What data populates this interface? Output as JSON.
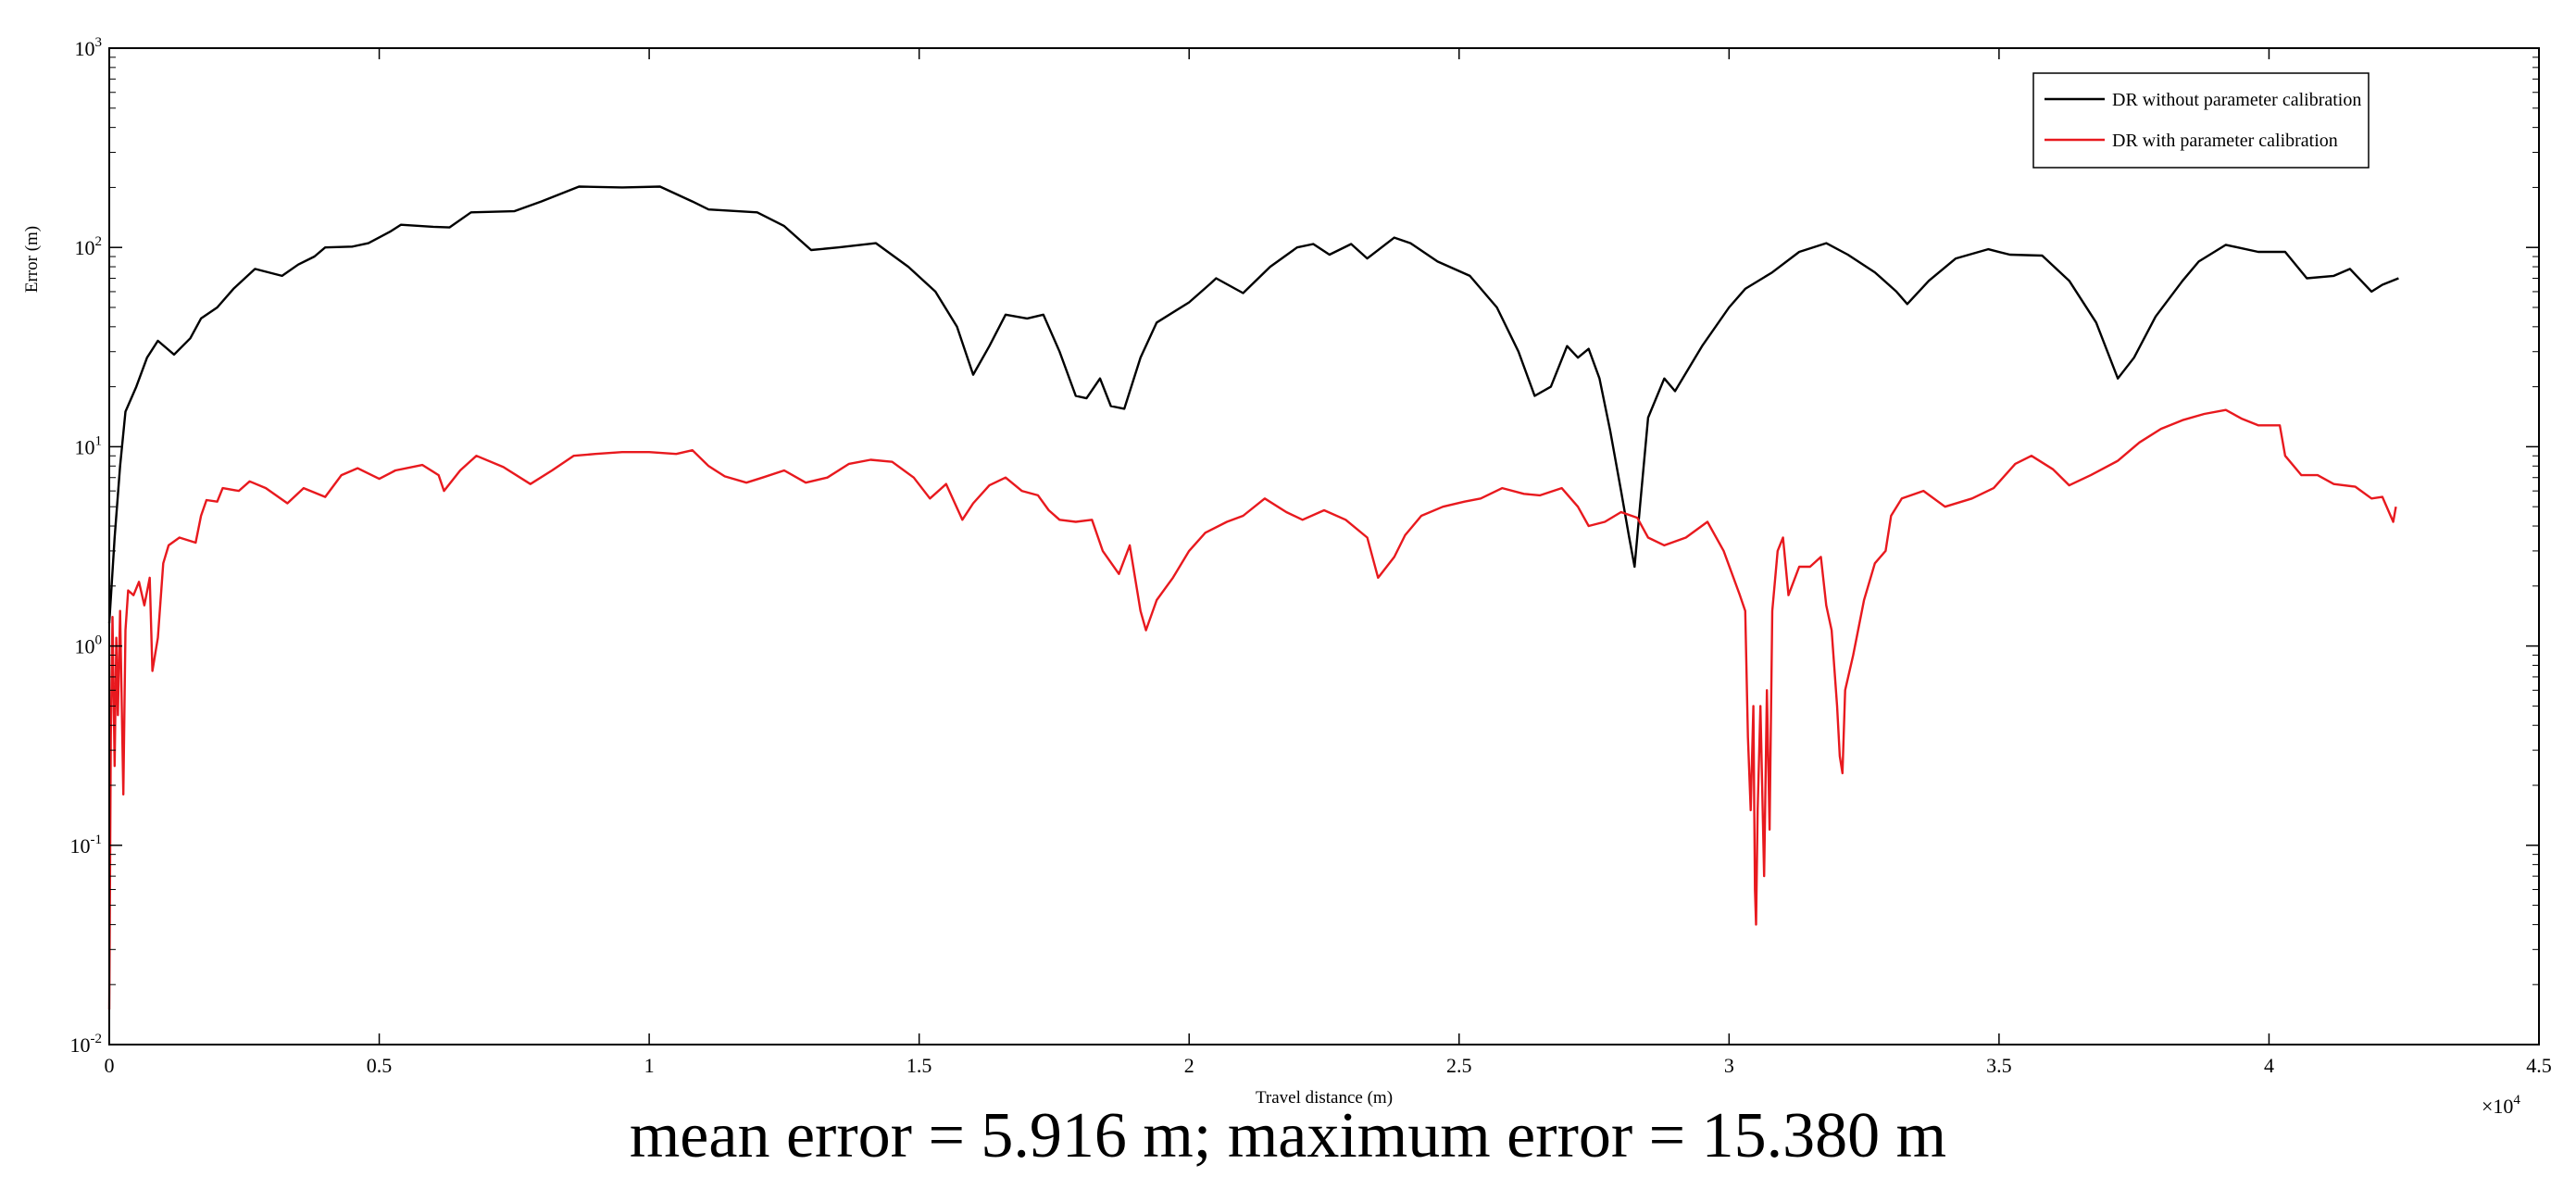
{
  "chart_data": {
    "type": "line",
    "xlabel": "Travel distance (m)",
    "ylabel": "Error (m)",
    "x_multiplier": "×10",
    "x_multiplier_exp": "4",
    "xlim": [
      0,
      45000
    ],
    "ylim": [
      0.01,
      1000
    ],
    "yscale": "log",
    "legend_position": "top-right",
    "x_ticks": [
      {
        "v": 0,
        "label": "0"
      },
      {
        "v": 5000,
        "label": "0.5"
      },
      {
        "v": 10000,
        "label": "1"
      },
      {
        "v": 15000,
        "label": "1.5"
      },
      {
        "v": 20000,
        "label": "2"
      },
      {
        "v": 25000,
        "label": "2.5"
      },
      {
        "v": 30000,
        "label": "3"
      },
      {
        "v": 35000,
        "label": "3.5"
      },
      {
        "v": 40000,
        "label": "4"
      },
      {
        "v": 45000,
        "label": "4.5"
      }
    ],
    "y_ticks": [
      {
        "v": 0.01,
        "exp": "-2"
      },
      {
        "v": 0.1,
        "exp": "-1"
      },
      {
        "v": 1,
        "exp": "0"
      },
      {
        "v": 10,
        "exp": "1"
      },
      {
        "v": 100,
        "exp": "2"
      },
      {
        "v": 1000,
        "exp": "3"
      }
    ],
    "series": [
      {
        "name": "DR without parameter calibration",
        "color": "#000000",
        "points": [
          [
            0,
            1.3
          ],
          [
            100,
            3.5
          ],
          [
            200,
            8
          ],
          [
            300,
            15
          ],
          [
            500,
            20
          ],
          [
            700,
            28
          ],
          [
            900,
            34
          ],
          [
            1200,
            29
          ],
          [
            1500,
            35
          ],
          [
            1700,
            44
          ],
          [
            2000,
            50
          ],
          [
            2300,
            62
          ],
          [
            2700,
            78
          ],
          [
            3200,
            72
          ],
          [
            3500,
            82
          ],
          [
            3800,
            90
          ],
          [
            4000,
            100
          ],
          [
            4500,
            101
          ],
          [
            4800,
            105
          ],
          [
            5200,
            120
          ],
          [
            5400,
            130
          ],
          [
            6000,
            127
          ],
          [
            6300,
            126
          ],
          [
            6700,
            150
          ],
          [
            7500,
            152
          ],
          [
            8000,
            170
          ],
          [
            8700,
            202
          ],
          [
            9500,
            200
          ],
          [
            10200,
            202
          ],
          [
            10800,
            170
          ],
          [
            11100,
            155
          ],
          [
            12000,
            150
          ],
          [
            12500,
            128
          ],
          [
            13000,
            97
          ],
          [
            13500,
            100
          ],
          [
            14200,
            105
          ],
          [
            14800,
            80
          ],
          [
            15300,
            60
          ],
          [
            15700,
            40
          ],
          [
            16000,
            23
          ],
          [
            16300,
            32
          ],
          [
            16600,
            46
          ],
          [
            17000,
            44
          ],
          [
            17300,
            46
          ],
          [
            17600,
            30
          ],
          [
            17900,
            18
          ],
          [
            18100,
            17.5
          ],
          [
            18350,
            22
          ],
          [
            18550,
            16
          ],
          [
            18800,
            15.5
          ],
          [
            19100,
            28
          ],
          [
            19400,
            42
          ],
          [
            20000,
            53
          ],
          [
            20400,
            66
          ],
          [
            20500,
            70
          ],
          [
            21000,
            59
          ],
          [
            21500,
            80
          ],
          [
            22000,
            100
          ],
          [
            22300,
            104
          ],
          [
            22600,
            92
          ],
          [
            23000,
            104
          ],
          [
            23300,
            88
          ],
          [
            23800,
            112
          ],
          [
            24100,
            105
          ],
          [
            24600,
            85
          ],
          [
            25200,
            72
          ],
          [
            25700,
            50
          ],
          [
            26100,
            30
          ],
          [
            26400,
            18
          ],
          [
            26700,
            20
          ],
          [
            27000,
            32
          ],
          [
            27200,
            28
          ],
          [
            27400,
            31
          ],
          [
            27600,
            22
          ],
          [
            27800,
            12
          ],
          [
            28000,
            6
          ],
          [
            28150,
            3.5
          ],
          [
            28250,
            2.5
          ],
          [
            28350,
            5
          ],
          [
            28500,
            14
          ],
          [
            28800,
            22
          ],
          [
            29000,
            19
          ],
          [
            29500,
            32
          ],
          [
            30000,
            50
          ],
          [
            30300,
            62
          ],
          [
            30800,
            75
          ],
          [
            31300,
            95
          ],
          [
            31800,
            105
          ],
          [
            32200,
            92
          ],
          [
            32700,
            75
          ],
          [
            33100,
            60
          ],
          [
            33300,
            52
          ],
          [
            33700,
            68
          ],
          [
            34200,
            88
          ],
          [
            34800,
            98
          ],
          [
            35200,
            92
          ],
          [
            35800,
            91
          ],
          [
            36300,
            68
          ],
          [
            36800,
            42
          ],
          [
            37200,
            22
          ],
          [
            37500,
            28
          ],
          [
            37900,
            45
          ],
          [
            38400,
            68
          ],
          [
            38700,
            85
          ],
          [
            39200,
            103
          ],
          [
            39800,
            95
          ],
          [
            40300,
            95
          ],
          [
            40700,
            70
          ],
          [
            41200,
            72
          ],
          [
            41500,
            78
          ],
          [
            41900,
            60
          ],
          [
            42100,
            65
          ],
          [
            42400,
            70
          ]
        ]
      },
      {
        "name": "DR with parameter calibration",
        "color": "#e8191e",
        "points": [
          [
            0,
            0.015
          ],
          [
            30,
            0.35
          ],
          [
            60,
            1.4
          ],
          [
            100,
            0.25
          ],
          [
            130,
            1.1
          ],
          [
            160,
            0.45
          ],
          [
            200,
            1.5
          ],
          [
            260,
            0.18
          ],
          [
            300,
            1.2
          ],
          [
            350,
            1.9
          ],
          [
            450,
            1.8
          ],
          [
            550,
            2.1
          ],
          [
            650,
            1.6
          ],
          [
            750,
            2.2
          ],
          [
            800,
            0.75
          ],
          [
            900,
            1.1
          ],
          [
            1000,
            2.6
          ],
          [
            1100,
            3.2
          ],
          [
            1300,
            3.5
          ],
          [
            1600,
            3.3
          ],
          [
            1700,
            4.5
          ],
          [
            1800,
            5.4
          ],
          [
            2000,
            5.3
          ],
          [
            2100,
            6.2
          ],
          [
            2400,
            6.0
          ],
          [
            2600,
            6.7
          ],
          [
            2900,
            6.2
          ],
          [
            3300,
            5.2
          ],
          [
            3600,
            6.2
          ],
          [
            4000,
            5.6
          ],
          [
            4300,
            7.2
          ],
          [
            4600,
            7.8
          ],
          [
            5000,
            6.9
          ],
          [
            5300,
            7.6
          ],
          [
            5800,
            8.1
          ],
          [
            6100,
            7.2
          ],
          [
            6200,
            6.0
          ],
          [
            6500,
            7.6
          ],
          [
            6800,
            9.0
          ],
          [
            7300,
            7.9
          ],
          [
            7800,
            6.5
          ],
          [
            8200,
            7.6
          ],
          [
            8600,
            9.0
          ],
          [
            9000,
            9.2
          ],
          [
            9500,
            9.4
          ],
          [
            10000,
            9.4
          ],
          [
            10500,
            9.2
          ],
          [
            10800,
            9.6
          ],
          [
            11100,
            8.0
          ],
          [
            11400,
            7.1
          ],
          [
            11800,
            6.6
          ],
          [
            12100,
            7.0
          ],
          [
            12500,
            7.6
          ],
          [
            12900,
            6.6
          ],
          [
            13300,
            7.0
          ],
          [
            13700,
            8.2
          ],
          [
            14100,
            8.6
          ],
          [
            14500,
            8.4
          ],
          [
            14900,
            7.0
          ],
          [
            15200,
            5.5
          ],
          [
            15500,
            6.5
          ],
          [
            15800,
            4.3
          ],
          [
            16000,
            5.2
          ],
          [
            16300,
            6.4
          ],
          [
            16600,
            7.0
          ],
          [
            16900,
            6.0
          ],
          [
            17200,
            5.7
          ],
          [
            17400,
            4.8
          ],
          [
            17600,
            4.3
          ],
          [
            17900,
            4.2
          ],
          [
            18200,
            4.3
          ],
          [
            18400,
            3.0
          ],
          [
            18700,
            2.3
          ],
          [
            18900,
            3.2
          ],
          [
            19100,
            1.5
          ],
          [
            19200,
            1.2
          ],
          [
            19400,
            1.7
          ],
          [
            19700,
            2.2
          ],
          [
            20000,
            3.0
          ],
          [
            20300,
            3.7
          ],
          [
            20700,
            4.2
          ],
          [
            21000,
            4.5
          ],
          [
            21400,
            5.5
          ],
          [
            21800,
            4.7
          ],
          [
            22100,
            4.3
          ],
          [
            22500,
            4.8
          ],
          [
            22900,
            4.3
          ],
          [
            23300,
            3.5
          ],
          [
            23500,
            2.2
          ],
          [
            23800,
            2.8
          ],
          [
            24000,
            3.6
          ],
          [
            24300,
            4.5
          ],
          [
            24700,
            5.0
          ],
          [
            25100,
            5.3
          ],
          [
            25400,
            5.5
          ],
          [
            25800,
            6.2
          ],
          [
            26200,
            5.8
          ],
          [
            26500,
            5.7
          ],
          [
            26900,
            6.2
          ],
          [
            27200,
            5.0
          ],
          [
            27400,
            4.0
          ],
          [
            27700,
            4.2
          ],
          [
            28000,
            4.7
          ],
          [
            28300,
            4.4
          ],
          [
            28500,
            3.5
          ],
          [
            28800,
            3.2
          ],
          [
            29200,
            3.5
          ],
          [
            29600,
            4.2
          ],
          [
            29900,
            3.0
          ],
          [
            30200,
            1.8
          ],
          [
            30300,
            1.5
          ],
          [
            30350,
            0.35
          ],
          [
            30400,
            0.15
          ],
          [
            30450,
            0.5
          ],
          [
            30480,
            0.06
          ],
          [
            30500,
            0.04
          ],
          [
            30530,
            0.15
          ],
          [
            30580,
            0.5
          ],
          [
            30650,
            0.07
          ],
          [
            30700,
            0.6
          ],
          [
            30750,
            0.12
          ],
          [
            30800,
            1.5
          ],
          [
            30900,
            3.0
          ],
          [
            31000,
            3.5
          ],
          [
            31100,
            1.8
          ],
          [
            31300,
            2.5
          ],
          [
            31500,
            2.5
          ],
          [
            31700,
            2.8
          ],
          [
            31800,
            1.6
          ],
          [
            31900,
            1.2
          ],
          [
            32000,
            0.5
          ],
          [
            32050,
            0.28
          ],
          [
            32100,
            0.23
          ],
          [
            32150,
            0.6
          ],
          [
            32300,
            0.9
          ],
          [
            32500,
            1.7
          ],
          [
            32700,
            2.6
          ],
          [
            32900,
            3.0
          ],
          [
            33000,
            4.5
          ],
          [
            33200,
            5.5
          ],
          [
            33600,
            6.0
          ],
          [
            34000,
            5.0
          ],
          [
            34500,
            5.5
          ],
          [
            34900,
            6.2
          ],
          [
            35300,
            8.2
          ],
          [
            35600,
            9.0
          ],
          [
            36000,
            7.7
          ],
          [
            36300,
            6.4
          ],
          [
            36700,
            7.2
          ],
          [
            37200,
            8.5
          ],
          [
            37600,
            10.5
          ],
          [
            38000,
            12.3
          ],
          [
            38400,
            13.6
          ],
          [
            38800,
            14.6
          ],
          [
            39200,
            15.3
          ],
          [
            39500,
            13.8
          ],
          [
            39800,
            12.8
          ],
          [
            40200,
            12.8
          ],
          [
            40300,
            9.0
          ],
          [
            40600,
            7.2
          ],
          [
            40900,
            7.2
          ],
          [
            41200,
            6.5
          ],
          [
            41600,
            6.3
          ],
          [
            41900,
            5.5
          ],
          [
            42100,
            5.6
          ],
          [
            42300,
            4.2
          ],
          [
            42350,
            5.0
          ]
        ]
      }
    ]
  },
  "caption": "mean error = 5.916 m; maximum error = 15.380 m"
}
